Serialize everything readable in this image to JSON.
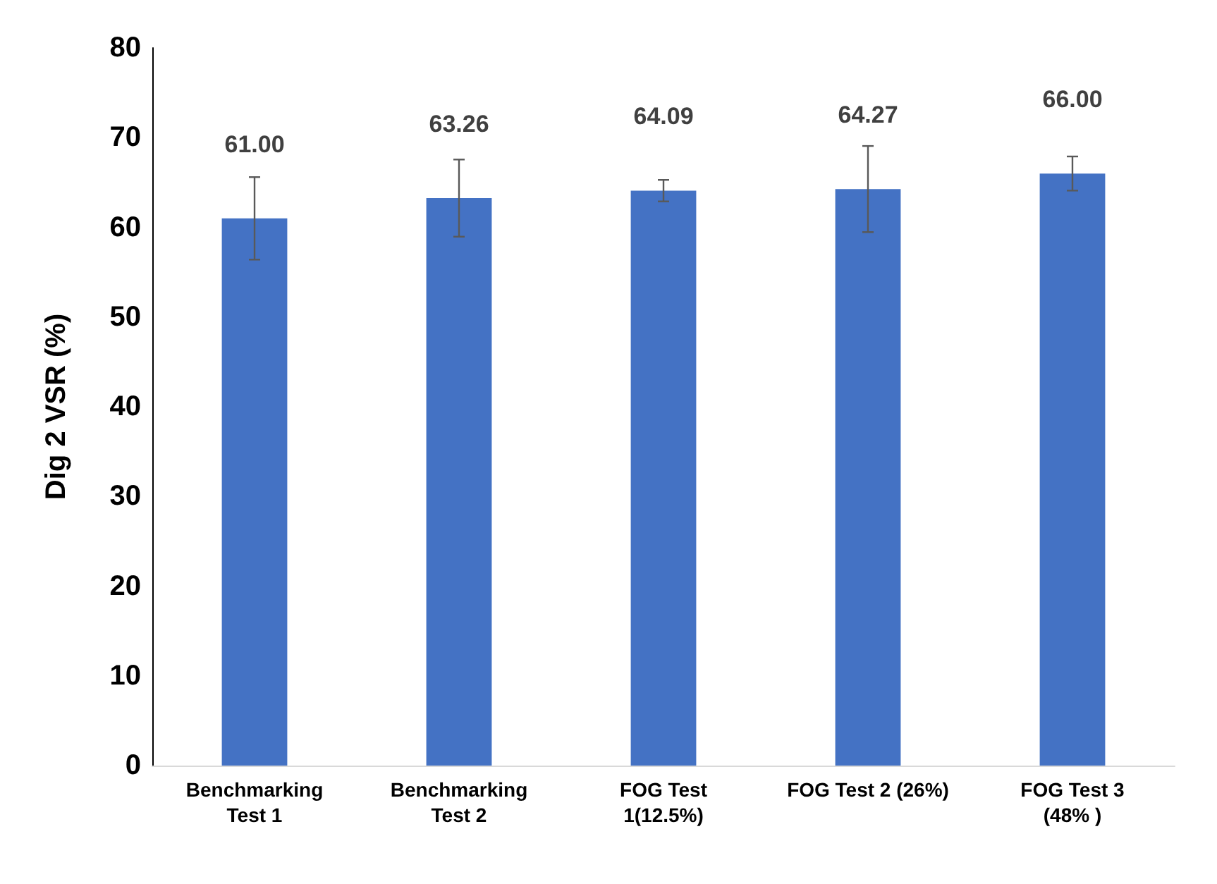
{
  "chart_data": {
    "type": "bar",
    "ylabel": "Dig 2 VSR (%)",
    "categories": [
      "Benchmarking Test 1",
      "Benchmarking Test 2",
      "FOG Test 1(12.5%)",
      "FOG Test 2 (26%)",
      "FOG Test 3 (48% )"
    ],
    "values": [
      61.0,
      63.26,
      64.09,
      64.27,
      66.0
    ],
    "errors": [
      4.6,
      4.3,
      1.2,
      4.8,
      1.9
    ],
    "value_labels": [
      "61.00",
      "63.26",
      "64.09",
      "64.27",
      "66.00"
    ],
    "color": "#4472c4",
    "ylim": [
      0,
      80
    ],
    "yticks": [
      0,
      10,
      20,
      30,
      40,
      50,
      60,
      70,
      80
    ],
    "grid": false
  }
}
